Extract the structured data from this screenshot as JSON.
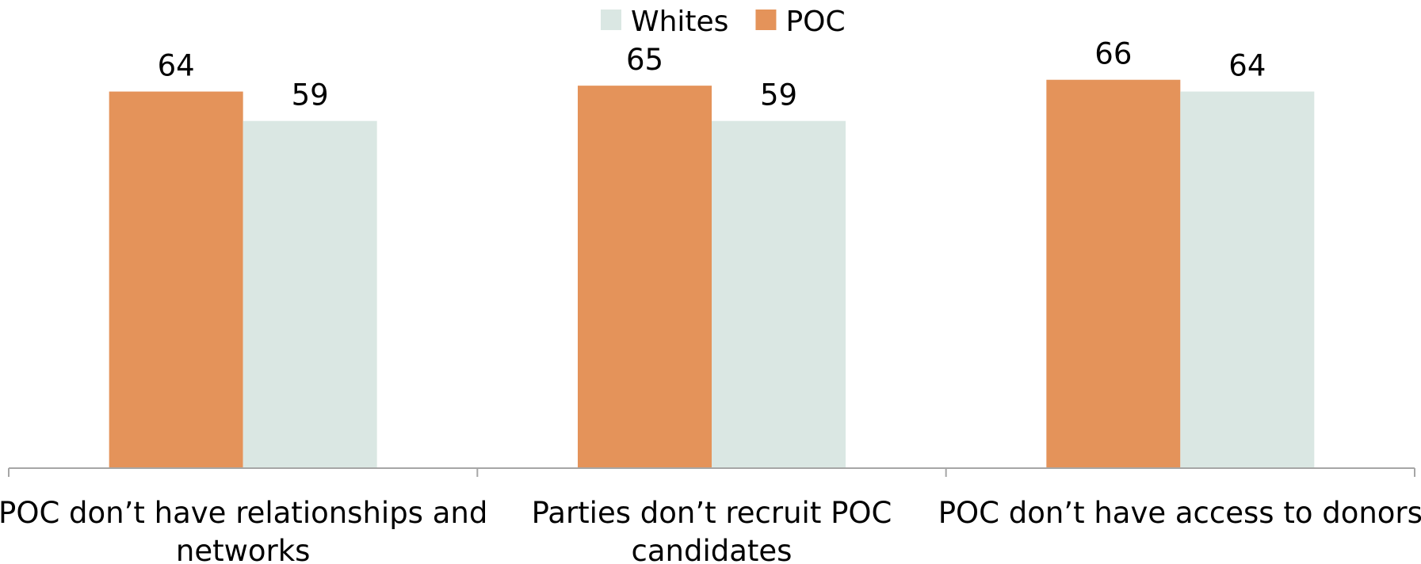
{
  "chart_data": {
    "type": "bar",
    "categories": [
      [
        "POC don’t have relationships and",
        "networks"
      ],
      [
        "Parties don’t recruit POC",
        "candidates"
      ],
      [
        "POC don’t have access to donors"
      ]
    ],
    "series": [
      {
        "name": "POC",
        "values": [
          64,
          65,
          66
        ],
        "color": "#E4935A"
      },
      {
        "name": "Whites",
        "values": [
          59,
          59,
          64
        ],
        "color": "#DAE7E3"
      }
    ],
    "legend": {
      "position": "top",
      "order": [
        "Whites",
        "POC"
      ]
    },
    "title": "",
    "xlabel": "",
    "ylabel": "",
    "ylim": [
      0,
      70
    ],
    "grid": false,
    "axis_color": "#A6A6A6"
  }
}
